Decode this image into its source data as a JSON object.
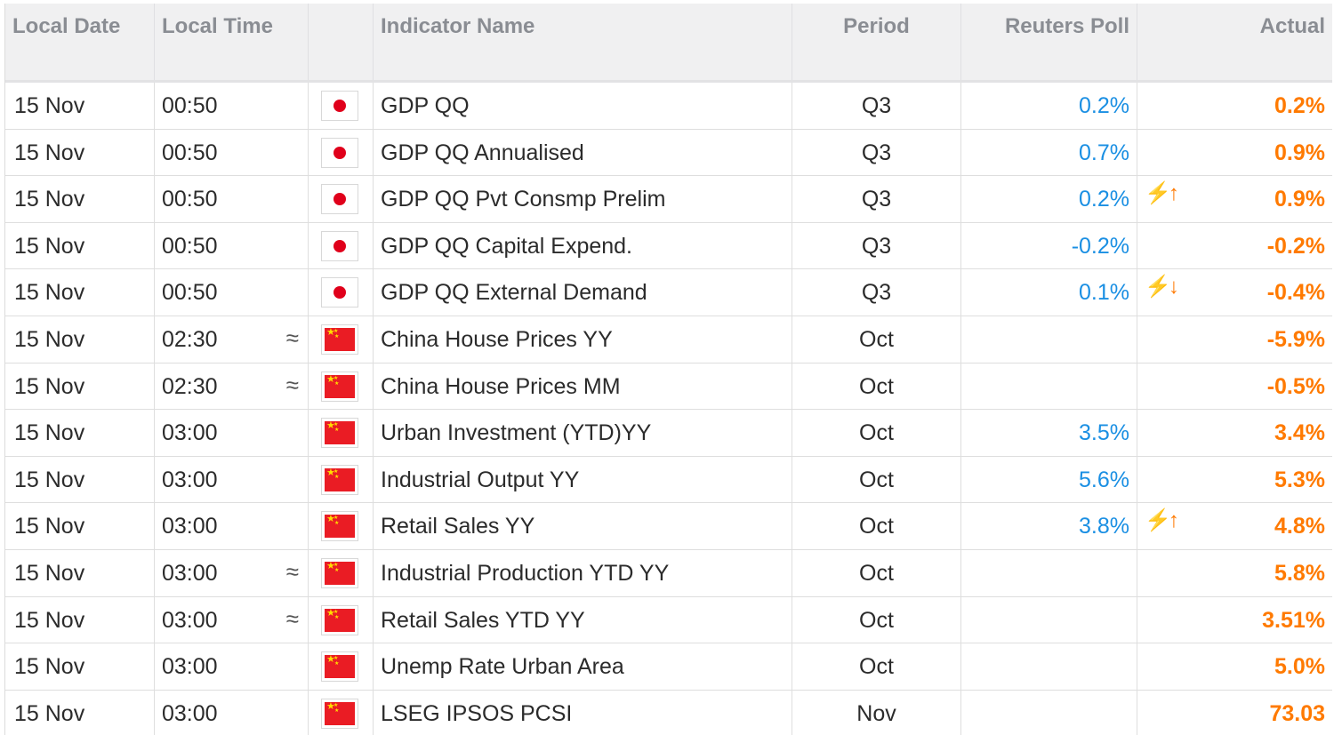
{
  "headers": {
    "date": "Local Date",
    "time": "Local Time",
    "flag": "",
    "name": "Indicator Name",
    "period": "Period",
    "poll": "Reuters Poll",
    "actual": "Actual"
  },
  "colors": {
    "poll": "#1a8fe3",
    "actual": "#ff7a00",
    "header_bg": "#f0f0f1",
    "header_text": "#8a8d93"
  },
  "rows": [
    {
      "date": "15 Nov",
      "time": "00:50",
      "approx": false,
      "flag": "japan-flag-icon",
      "name": "GDP QQ",
      "period": "Q3",
      "poll": "0.2%",
      "surprise": "",
      "actual": "0.2%"
    },
    {
      "date": "15 Nov",
      "time": "00:50",
      "approx": false,
      "flag": "japan-flag-icon",
      "name": "GDP QQ Annualised",
      "period": "Q3",
      "poll": "0.7%",
      "surprise": "",
      "actual": "0.9%"
    },
    {
      "date": "15 Nov",
      "time": "00:50",
      "approx": false,
      "flag": "japan-flag-icon",
      "name": "GDP QQ Pvt Consmp Prelim",
      "period": "Q3",
      "poll": "0.2%",
      "surprise": "up",
      "actual": "0.9%"
    },
    {
      "date": "15 Nov",
      "time": "00:50",
      "approx": false,
      "flag": "japan-flag-icon",
      "name": "GDP QQ Capital Expend.",
      "period": "Q3",
      "poll": "-0.2%",
      "surprise": "",
      "actual": "-0.2%"
    },
    {
      "date": "15 Nov",
      "time": "00:50",
      "approx": false,
      "flag": "japan-flag-icon",
      "name": "GDP QQ External Demand",
      "period": "Q3",
      "poll": "0.1%",
      "surprise": "down",
      "actual": "-0.4%"
    },
    {
      "date": "15 Nov",
      "time": "02:30",
      "approx": true,
      "flag": "china-flag-icon",
      "name": "China House Prices YY",
      "period": "Oct",
      "poll": "",
      "surprise": "",
      "actual": "-5.9%"
    },
    {
      "date": "15 Nov",
      "time": "02:30",
      "approx": true,
      "flag": "china-flag-icon",
      "name": "China House Prices MM",
      "period": "Oct",
      "poll": "",
      "surprise": "",
      "actual": "-0.5%"
    },
    {
      "date": "15 Nov",
      "time": "03:00",
      "approx": false,
      "flag": "china-flag-icon",
      "name": "Urban Investment (YTD)YY",
      "period": "Oct",
      "poll": "3.5%",
      "surprise": "",
      "actual": "3.4%"
    },
    {
      "date": "15 Nov",
      "time": "03:00",
      "approx": false,
      "flag": "china-flag-icon",
      "name": "Industrial Output YY",
      "period": "Oct",
      "poll": "5.6%",
      "surprise": "",
      "actual": "5.3%"
    },
    {
      "date": "15 Nov",
      "time": "03:00",
      "approx": false,
      "flag": "china-flag-icon",
      "name": "Retail Sales YY",
      "period": "Oct",
      "poll": "3.8%",
      "surprise": "up",
      "actual": "4.8%"
    },
    {
      "date": "15 Nov",
      "time": "03:00",
      "approx": true,
      "flag": "china-flag-icon",
      "name": "Industrial Production YTD YY",
      "period": "Oct",
      "poll": "",
      "surprise": "",
      "actual": "5.8%"
    },
    {
      "date": "15 Nov",
      "time": "03:00",
      "approx": true,
      "flag": "china-flag-icon",
      "name": "Retail Sales YTD YY",
      "period": "Oct",
      "poll": "",
      "surprise": "",
      "actual": "3.51%"
    },
    {
      "date": "15 Nov",
      "time": "03:00",
      "approx": false,
      "flag": "china-flag-icon",
      "name": "Unemp Rate Urban Area",
      "period": "Oct",
      "poll": "",
      "surprise": "",
      "actual": "5.0%"
    },
    {
      "date": "15 Nov",
      "time": "03:00",
      "approx": false,
      "flag": "china-flag-icon",
      "name": "LSEG IPSOS PCSI",
      "period": "Nov",
      "poll": "",
      "surprise": "",
      "actual": "73.03"
    }
  ]
}
